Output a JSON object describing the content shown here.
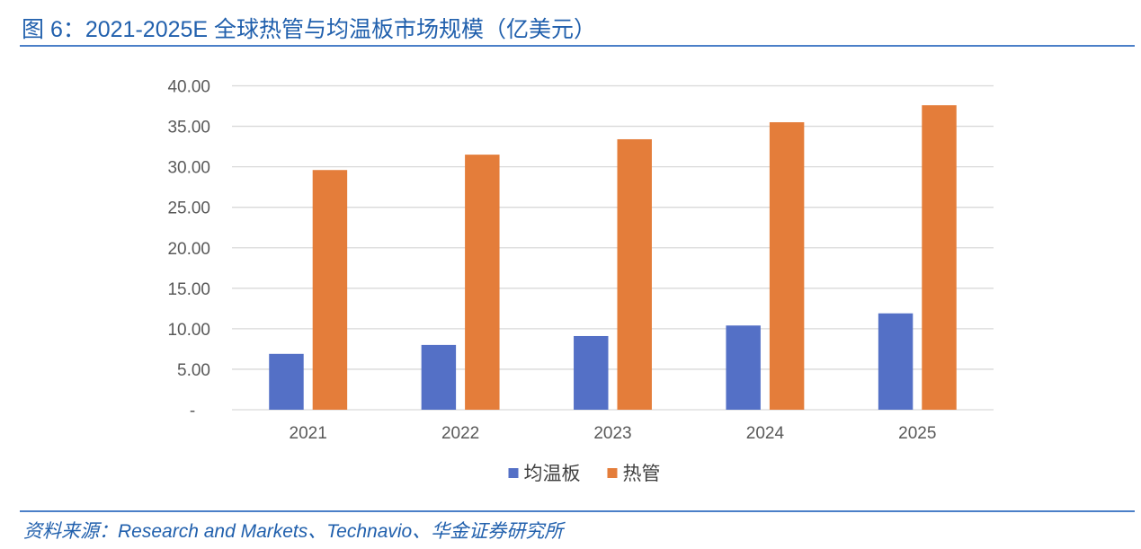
{
  "figure": {
    "caption": "图 6：2021-2025E 全球热管与均温板市场规模（亿美元）",
    "source": "资料来源：Research and Markets、Technavio、华金证券研究所"
  },
  "colors": {
    "caption_text": "#2160ad",
    "rule_line": "#4b7fc8",
    "source_text": "#2160ad",
    "axis_text": "#595959",
    "legend_text": "#404040",
    "gridline": "#d9d9d9"
  },
  "chart_data": {
    "type": "bar",
    "categories": [
      "2021",
      "2022",
      "2023",
      "2024",
      "2025"
    ],
    "series": [
      {
        "name": "均温板",
        "color": "#5470c6",
        "values": [
          6.9,
          8.0,
          9.1,
          10.4,
          11.9
        ]
      },
      {
        "name": "热管",
        "color": "#e47d3a",
        "values": [
          29.6,
          31.5,
          33.4,
          35.5,
          37.6
        ]
      }
    ],
    "ylim": [
      0,
      40
    ],
    "yticks": [
      0,
      5,
      10,
      15,
      20,
      25,
      30,
      35,
      40
    ],
    "ytick_labels": [
      "-",
      "5.00",
      "10.00",
      "15.00",
      "20.00",
      "25.00",
      "30.00",
      "35.00",
      "40.00"
    ],
    "grid": true,
    "legend": "bottom"
  }
}
